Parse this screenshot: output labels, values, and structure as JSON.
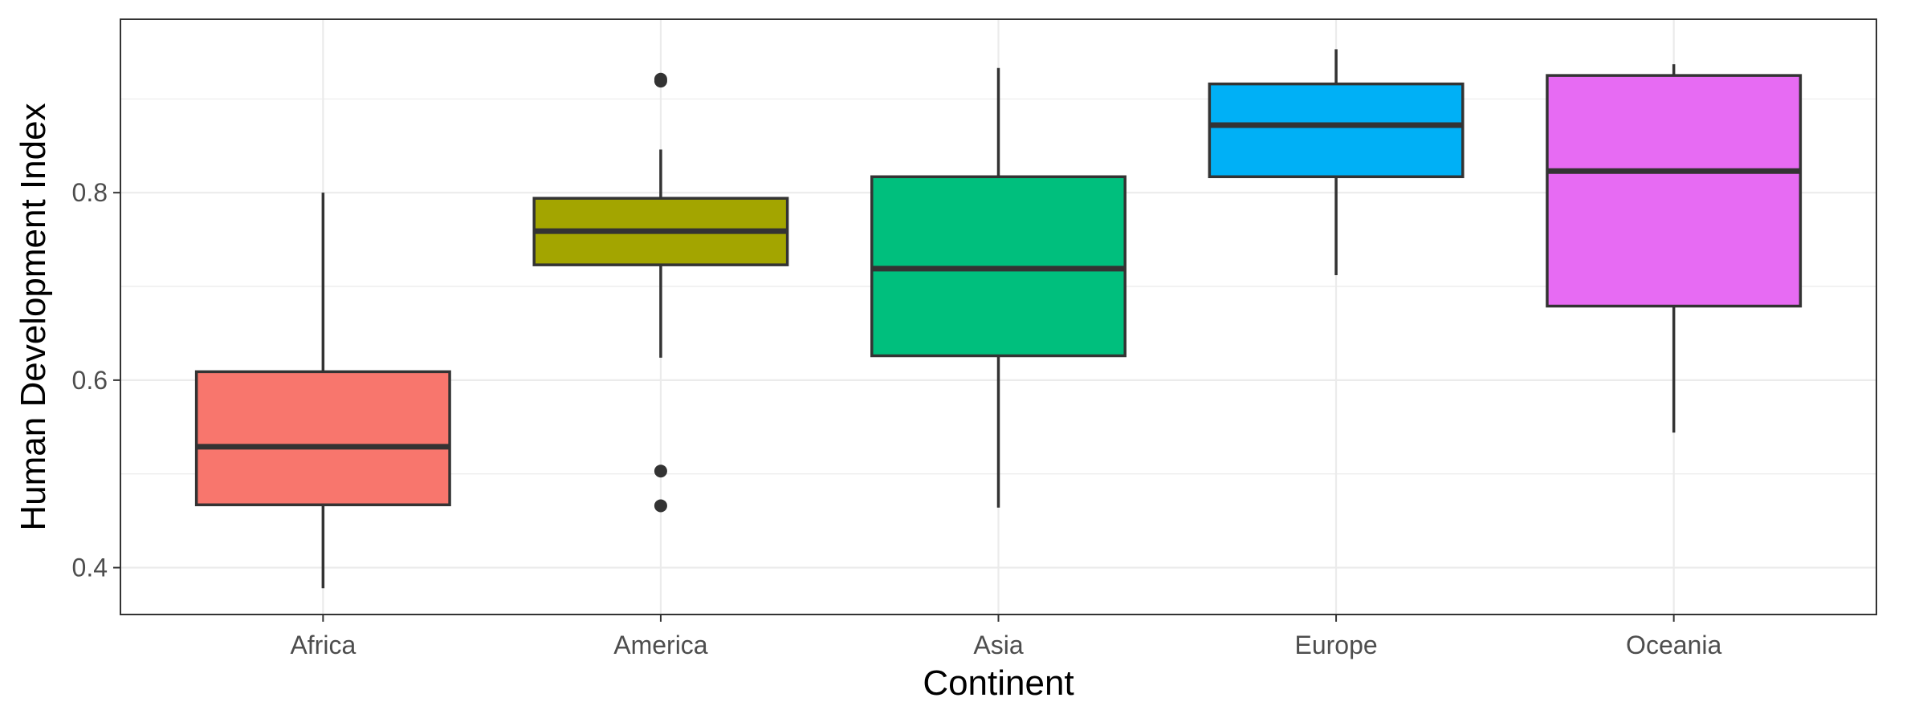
{
  "chart_data": {
    "type": "boxplot",
    "title": "",
    "xlabel": "Continent",
    "ylabel": "Human Development Index",
    "ylim": [
      0.35,
      0.985
    ],
    "yticks": [
      0.4,
      0.6,
      0.8
    ],
    "ytick_labels": [
      "0.4",
      "0.6",
      "0.8"
    ],
    "grid": true,
    "legend": "none",
    "categories": [
      "Africa",
      "America",
      "Asia",
      "Europe",
      "Oceania"
    ],
    "boxes": [
      {
        "category": "Africa",
        "whisker_low": 0.378,
        "q1": 0.467,
        "median": 0.529,
        "q3": 0.609,
        "whisker_high": 0.8,
        "outliers": [],
        "color": "#F8766D"
      },
      {
        "category": "America",
        "whisker_low": 0.624,
        "q1": 0.723,
        "median": 0.759,
        "q3": 0.794,
        "whisker_high": 0.846,
        "outliers": [
          0.921,
          0.919,
          0.503,
          0.466
        ],
        "color": "#A3A500"
      },
      {
        "category": "Asia",
        "whisker_low": 0.464,
        "q1": 0.626,
        "median": 0.719,
        "q3": 0.817,
        "whisker_high": 0.933,
        "outliers": [],
        "color": "#00BF7D"
      },
      {
        "category": "Europe",
        "whisker_low": 0.712,
        "q1": 0.817,
        "median": 0.872,
        "q3": 0.916,
        "whisker_high": 0.953,
        "outliers": [],
        "color": "#00B0F6"
      },
      {
        "category": "Oceania",
        "whisker_low": 0.544,
        "q1": 0.679,
        "median": 0.823,
        "q3": 0.925,
        "whisker_high": 0.937,
        "outliers": [],
        "color": "#E76BF3"
      }
    ]
  }
}
